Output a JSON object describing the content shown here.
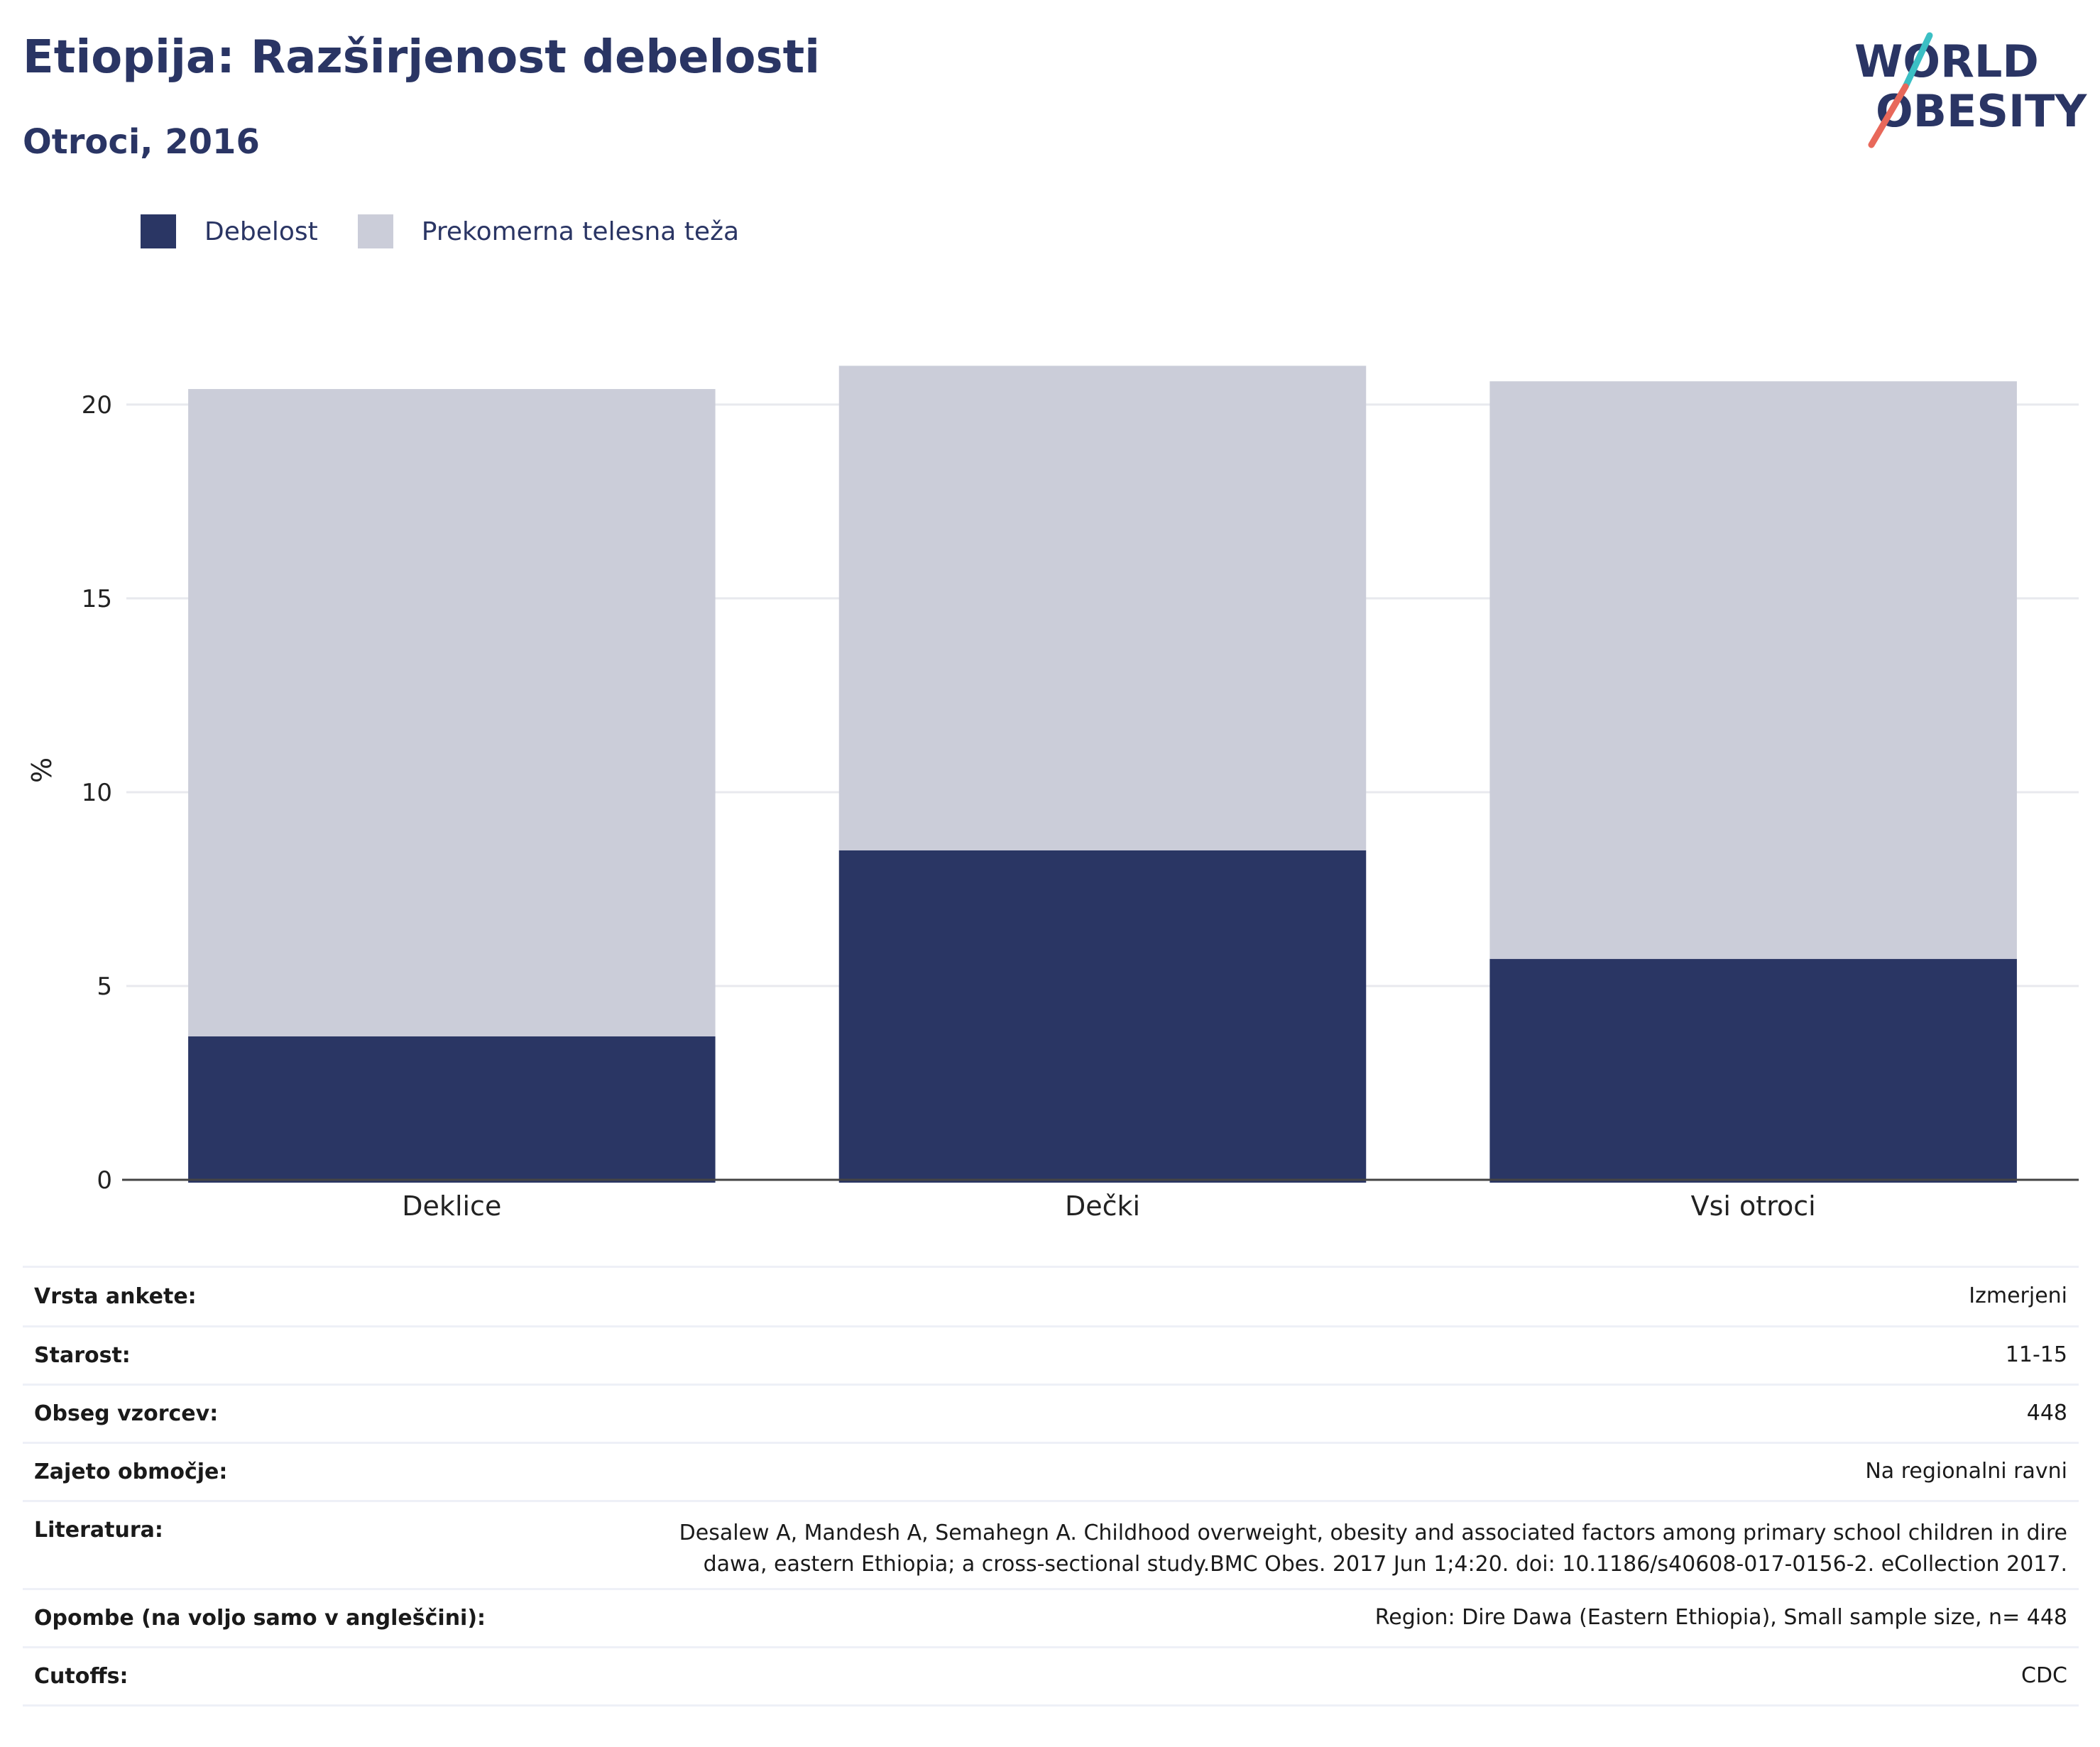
{
  "header": {
    "title": "Etiopija: Razširjenost debelosti",
    "subtitle": "Otroci, 2016"
  },
  "logo": {
    "line1": "WORLD",
    "line2": "OBESITY",
    "colors": {
      "text": "#2a3564",
      "slash_top": "#3bbfc4",
      "slash_bottom": "#e8685a"
    }
  },
  "colors": {
    "obesity": "#2a3664",
    "overweight": "#cbcdd9",
    "grid": "#e8e9ee",
    "axis": "#444444"
  },
  "chart_data": {
    "type": "bar",
    "stacked": true,
    "categories": [
      "Deklice",
      "Dečki",
      "Vsi otroci"
    ],
    "series": [
      {
        "name": "Debelost",
        "values": [
          3.7,
          8.5,
          5.7
        ]
      },
      {
        "name": "Prekomerna telesna teža",
        "values": [
          16.7,
          12.5,
          14.9
        ]
      }
    ],
    "ylabel": "%",
    "xlabel": "",
    "ylim": [
      0,
      21.5
    ],
    "yticks": [
      0,
      5,
      10,
      15,
      20
    ],
    "grid": true,
    "legend_position": "top-left"
  },
  "info": {
    "rows": [
      {
        "key": "Vrsta ankete:",
        "value": "Izmerjeni"
      },
      {
        "key": "Starost:",
        "value": "11-15"
      },
      {
        "key": "Obseg vzorcev:",
        "value": "448"
      },
      {
        "key": "Zajeto območje:",
        "value": "Na regionalni ravni"
      },
      {
        "key": "Literatura:",
        "value_line1": "Desalew A, Mandesh A, Semahegn A. Childhood overweight, obesity and associated factors among primary school children in dire",
        "value_line2": "dawa, eastern Ethiopia; a cross-sectional study.BMC Obes. 2017 Jun 1;4:20. doi: 10.1186/s40608-017-0156-2. eCollection 2017."
      },
      {
        "key": "Opombe (na voljo samo v angleščini):",
        "value": "Region: Dire Dawa (Eastern Ethiopia), Small sample size, n= 448"
      },
      {
        "key": "Cutoffs:",
        "value": "CDC"
      }
    ]
  }
}
